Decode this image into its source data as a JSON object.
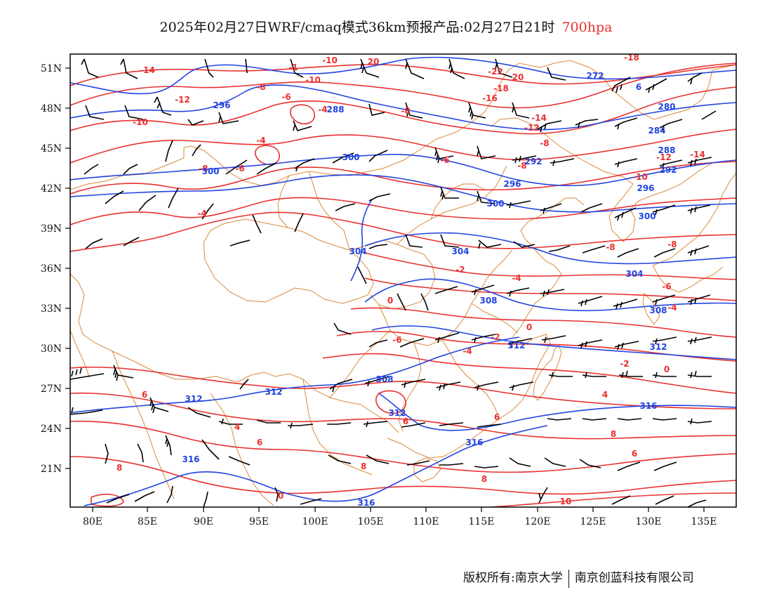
{
  "title": {
    "main": "2025年02月27日WRF/cmaq模式36km预报产品:02月27日21时",
    "level": "700hpa",
    "level_color": "#e8302f"
  },
  "map": {
    "lon_ticks": [
      "80E",
      "85E",
      "90E",
      "95E",
      "100E",
      "105E",
      "110E",
      "115E",
      "120E",
      "125E",
      "130E",
      "135E"
    ],
    "lat_ticks": [
      "51N",
      "48N",
      "45N",
      "42N",
      "39N",
      "36N",
      "33N",
      "30N",
      "27N",
      "24N",
      "21N"
    ],
    "colors": {
      "temperature": "#e8302f",
      "geopotential": "#2143e0",
      "boundary": "#d88a3a",
      "wind": "#000000"
    },
    "temperature_labels": [
      {
        "text": "-14"
      },
      {
        "text": "-1"
      },
      {
        "text": "-10"
      },
      {
        "text": "20"
      },
      {
        "text": "-22"
      },
      {
        "text": "20"
      },
      {
        "text": "-18"
      },
      {
        "text": "-8"
      },
      {
        "text": "-12"
      },
      {
        "text": "-6"
      },
      {
        "text": "-18"
      },
      {
        "text": "-16"
      },
      {
        "text": "-10"
      },
      {
        "text": "-4"
      },
      {
        "text": "-8"
      },
      {
        "text": "-14"
      },
      {
        "text": "-12"
      },
      {
        "text": "-10"
      },
      {
        "text": "-8"
      },
      {
        "text": "-4"
      },
      {
        "text": "-6"
      },
      {
        "text": "-8"
      },
      {
        "text": "-6"
      },
      {
        "text": "-8"
      },
      {
        "text": "-14"
      },
      {
        "text": "-12"
      },
      {
        "text": "-10"
      },
      {
        "text": "-4"
      },
      {
        "text": "-8"
      },
      {
        "text": "-8"
      },
      {
        "text": "-2"
      },
      {
        "text": "-4"
      },
      {
        "text": "-6"
      },
      {
        "text": "-4"
      },
      {
        "text": "0"
      },
      {
        "text": "0"
      },
      {
        "text": "-6"
      },
      {
        "text": "-4"
      },
      {
        "text": "-2"
      },
      {
        "text": "0"
      },
      {
        "text": "-2"
      },
      {
        "text": "6"
      },
      {
        "text": "4"
      },
      {
        "text": "4"
      },
      {
        "text": "6"
      },
      {
        "text": "6"
      },
      {
        "text": "8"
      },
      {
        "text": "6"
      },
      {
        "text": "8"
      },
      {
        "text": "8"
      },
      {
        "text": "6"
      },
      {
        "text": "0"
      },
      {
        "text": "8"
      },
      {
        "text": "10"
      }
    ],
    "height_labels": [
      {
        "text": "272"
      },
      {
        "text": "6"
      },
      {
        "text": "296"
      },
      {
        "text": "288"
      },
      {
        "text": "280"
      },
      {
        "text": "284"
      },
      {
        "text": "300"
      },
      {
        "text": "288"
      },
      {
        "text": "292"
      },
      {
        "text": "300"
      },
      {
        "text": "292"
      },
      {
        "text": "296"
      },
      {
        "text": "300"
      },
      {
        "text": "296"
      },
      {
        "text": "300"
      },
      {
        "text": "304"
      },
      {
        "text": "304"
      },
      {
        "text": "304"
      },
      {
        "text": "308"
      },
      {
        "text": "308"
      },
      {
        "text": "312"
      },
      {
        "text": "312"
      },
      {
        "text": "312"
      },
      {
        "text": "308"
      },
      {
        "text": "312"
      },
      {
        "text": "312"
      },
      {
        "text": "316"
      },
      {
        "text": "316"
      },
      {
        "text": "316"
      },
      {
        "text": "316"
      }
    ]
  },
  "footer": {
    "left": "版权所有:南京大学",
    "right": "南京创蓝科技有限公司"
  }
}
